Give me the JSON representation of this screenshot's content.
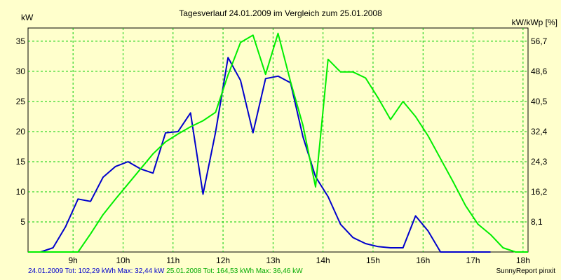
{
  "chart_data": {
    "type": "line",
    "title": "Tagesverlauf 24.01.2009 im Vergleich zum 25.01.2008",
    "ylabel": "kW",
    "y2label": "kW/kWp [%]",
    "xlim": [
      8.1,
      18.1
    ],
    "ylim": [
      0,
      37.2
    ],
    "x_ticks": [
      9,
      10,
      11,
      12,
      13,
      14,
      15,
      16,
      17,
      18
    ],
    "x_tick_labels": [
      "9h",
      "10h",
      "11h",
      "12h",
      "13h",
      "14h",
      "15h",
      "16h",
      "17h",
      "18h"
    ],
    "y_ticks": [
      5,
      10,
      15,
      20,
      25,
      30,
      35
    ],
    "y_tick_labels": [
      "5",
      "10",
      "15",
      "20",
      "25",
      "30",
      "35"
    ],
    "y2_ticks": [
      5,
      10,
      15,
      20,
      25,
      30,
      35
    ],
    "y2_tick_labels": [
      "8,1",
      "16,2",
      "24,3",
      "32,4",
      "40,5",
      "48,6",
      "56,7"
    ],
    "grid": true,
    "series": [
      {
        "name": "24.01.2009",
        "color": "#0000cc",
        "x": [
          8.1,
          8.35,
          8.6,
          8.85,
          9.1,
          9.35,
          9.6,
          9.85,
          10.1,
          10.35,
          10.6,
          10.85,
          11.1,
          11.35,
          11.6,
          11.85,
          12.1,
          12.35,
          12.6,
          12.85,
          13.1,
          13.35,
          13.6,
          13.85,
          14.1,
          14.35,
          14.6,
          14.85,
          15.1,
          15.35,
          15.6,
          15.85,
          16.1,
          16.35,
          16.6,
          16.85,
          17.1,
          17.35
        ],
        "y": [
          0,
          0,
          0.7,
          4.2,
          8.8,
          8.4,
          12.4,
          14.2,
          15.0,
          13.8,
          13.1,
          19.8,
          20.0,
          23.1,
          9.6,
          19.9,
          32.3,
          28.5,
          19.8,
          28.8,
          29.2,
          28.1,
          19.1,
          12.5,
          9.2,
          4.6,
          2.4,
          1.4,
          0.9,
          0.7,
          0.7,
          6.0,
          3.5,
          0,
          0,
          0,
          0,
          0
        ]
      },
      {
        "name": "25.01.2008",
        "color": "#00ee00",
        "x": [
          8.1,
          8.35,
          8.6,
          8.85,
          9.1,
          9.35,
          9.6,
          9.85,
          10.1,
          10.35,
          10.6,
          10.85,
          11.1,
          11.35,
          11.6,
          11.85,
          12.1,
          12.35,
          12.6,
          12.85,
          13.1,
          13.35,
          13.6,
          13.85,
          14.1,
          14.35,
          14.6,
          14.85,
          15.1,
          15.35,
          15.6,
          15.85,
          16.1,
          16.35,
          16.6,
          16.85,
          17.1,
          17.35,
          17.6,
          17.85,
          18.1
        ],
        "y": [
          0,
          0,
          0,
          0,
          0,
          3.0,
          6.2,
          8.8,
          11.3,
          13.8,
          16.3,
          18.3,
          19.6,
          20.8,
          21.8,
          23.2,
          29.4,
          34.8,
          36.0,
          29.5,
          36.3,
          28.3,
          21.0,
          10.8,
          32.0,
          29.9,
          29.9,
          28.9,
          25.6,
          22.0,
          25.0,
          22.5,
          19.3,
          15.5,
          11.7,
          7.7,
          4.6,
          2.9,
          0.7,
          0,
          0
        ]
      }
    ]
  },
  "footer": {
    "series1_text": "24.01.2009 Tot: 102,29 kWh Max: 32,44 kW",
    "series2_text": "25.01.2008 Tot: 164,53 kWh Max: 36,46 kW",
    "credit": "SunnyReport pinxit"
  }
}
